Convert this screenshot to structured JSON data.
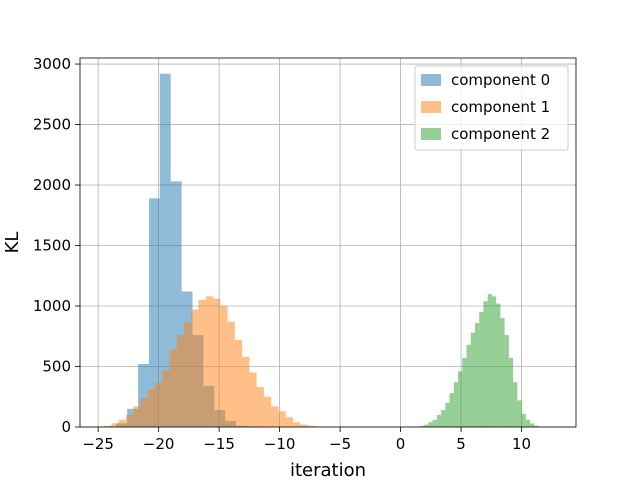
{
  "chart_data": {
    "type": "histogram",
    "xlabel": "iteration",
    "ylabel": "KL",
    "xlim": [
      -26.5,
      14.5
    ],
    "ylim": [
      0,
      3050
    ],
    "xticks": [
      -25,
      -20,
      -15,
      -10,
      -5,
      0,
      5,
      10
    ],
    "xtick_labels": [
      "−25",
      "−20",
      "−15",
      "−10",
      "−5",
      "0",
      "5",
      "10"
    ],
    "yticks": [
      0,
      500,
      1000,
      1500,
      2000,
      2500,
      3000
    ],
    "ytick_labels": [
      "0",
      "500",
      "1000",
      "1500",
      "2000",
      "2500",
      "3000"
    ],
    "grid": true,
    "legend_position": "top-right",
    "series": [
      {
        "name": "component 0",
        "color": "#1f77b4",
        "alpha": 0.5,
        "bin_start": -23.5,
        "bin_width": 0.9,
        "counts": [
          30,
          150,
          520,
          1890,
          2920,
          2030,
          1120,
          760,
          340,
          140,
          50,
          10,
          5
        ]
      },
      {
        "name": "component 1",
        "color": "#ff7f0e",
        "alpha": 0.5,
        "bin_start": -24.5,
        "bin_width": 0.6,
        "counts": [
          10,
          30,
          60,
          100,
          170,
          240,
          310,
          370,
          470,
          640,
          760,
          860,
          970,
          1050,
          1080,
          1060,
          1000,
          870,
          720,
          580,
          450,
          330,
          250,
          170,
          130,
          80,
          40,
          20,
          10,
          5
        ]
      },
      {
        "name": "component 2",
        "color": "#2ca02c",
        "alpha": 0.5,
        "bin_start": 1.6,
        "bin_width": 0.35,
        "counts": [
          10,
          20,
          40,
          60,
          100,
          140,
          200,
          280,
          370,
          460,
          570,
          680,
          780,
          860,
          950,
          1040,
          1100,
          1080,
          1020,
          900,
          760,
          570,
          370,
          220,
          110,
          60,
          30,
          10
        ]
      }
    ]
  }
}
